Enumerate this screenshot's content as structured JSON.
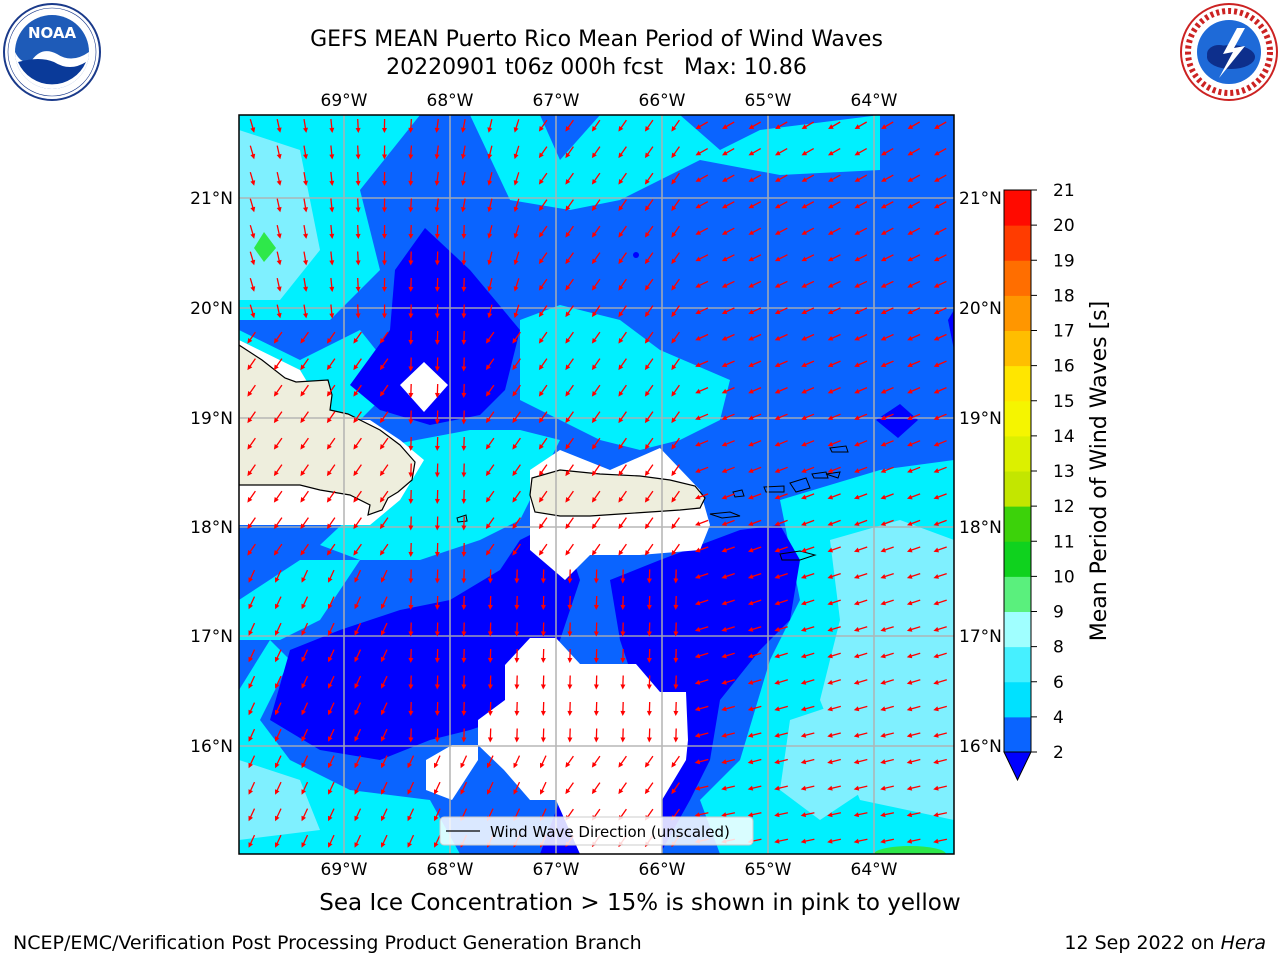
{
  "header": {
    "title_line1": "GEFS MEAN Puerto Rico Mean Period of Wind Waves",
    "title_line2": "20220901 t06z 000h fcst   Max: 10.86"
  },
  "logos": {
    "left": {
      "text": "NOAA",
      "ring_text": "NATIONAL OCEANIC AND ATMOSPHERIC ADMINISTRATION · U.S. DEPARTMENT OF COMMERCE"
    },
    "right": {
      "ring_text": "NATIONAL WEATHER SERVICE"
    }
  },
  "map": {
    "lon_labels": [
      "69°W",
      "68°W",
      "67°W",
      "66°W",
      "65°W",
      "64°W"
    ],
    "lat_labels": [
      "21°N",
      "20°N",
      "19°N",
      "18°N",
      "17°N",
      "16°N"
    ],
    "legend_label": "Wind Wave Direction (unscaled)"
  },
  "colorbar": {
    "label": "Mean Period of Wind Waves [s]",
    "ticks": [
      "2",
      "4",
      "6",
      "8",
      "9",
      "10",
      "11",
      "12",
      "13",
      "14",
      "15",
      "16",
      "17",
      "18",
      "19",
      "20",
      "21"
    ],
    "colors": [
      "#0a64ff",
      "#00e1ff",
      "#46f0ff",
      "#a0ffff",
      "#5af07d",
      "#0fd21e",
      "#3cd20a",
      "#c3e600",
      "#dcf000",
      "#f5f500",
      "#ffe600",
      "#ffbe00",
      "#ff9600",
      "#ff6e00",
      "#ff3c00",
      "#ff0a00"
    ],
    "extend_min_color": "#0000ff"
  },
  "colors": {
    "deep_blue": "#0000ff",
    "mid_blue": "#0a64ff",
    "cyan": "#00f0ff",
    "light_cyan": "#7ff0ff",
    "green": "#2ee84a",
    "land": "#eeeedd",
    "arrow": "#ff0000"
  },
  "footnote": "Sea Ice Concentration > 15% is shown in pink to yellow",
  "footer": {
    "left": "NCEP/EMC/Verification Post Processing Product Generation Branch",
    "right_date": "12 Sep 2022 on ",
    "right_host": "Hera"
  }
}
